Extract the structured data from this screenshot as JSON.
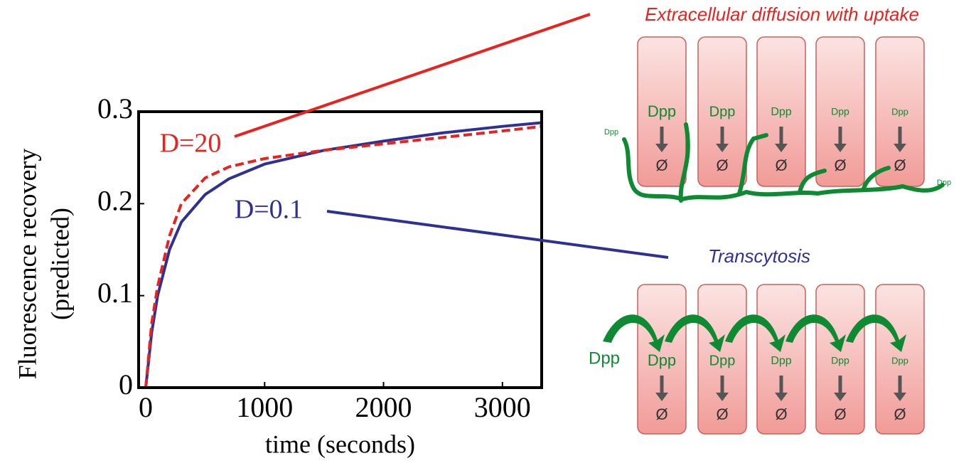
{
  "chart_data": {
    "type": "line",
    "xlabel": "time (seconds)",
    "ylabel": [
      "Fluorescence recovery",
      "(predicted)"
    ],
    "x": [
      0,
      50,
      100,
      200,
      300,
      500,
      700,
      1000,
      1500,
      2000,
      2500,
      3000,
      3330
    ],
    "series": [
      {
        "name": "D=20",
        "color": "#e8231f",
        "dash": true,
        "values": [
          0,
          0.07,
          0.11,
          0.165,
          0.2,
          0.228,
          0.24,
          0.249,
          0.258,
          0.265,
          0.272,
          0.279,
          0.284
        ]
      },
      {
        "name": "D=0.1",
        "color": "#2e3192",
        "dash": false,
        "values": [
          0,
          0.06,
          0.1,
          0.15,
          0.18,
          0.21,
          0.227,
          0.243,
          0.258,
          0.268,
          0.277,
          0.284,
          0.288
        ]
      }
    ],
    "xlim": [
      -60,
      3330
    ],
    "ylim": [
      0,
      0.3
    ],
    "xticks": [
      0,
      1000,
      2000,
      3000
    ],
    "yticks": [
      0,
      0.1,
      0.2,
      0.3
    ]
  },
  "diagrams": {
    "extracellular": {
      "label": "Extracellular diffusion with uptake",
      "cells": [
        "Dpp",
        "Dpp",
        "Dpp",
        "Dpp",
        "Dpp"
      ],
      "sink": "Ø",
      "extra": [
        "Dpp",
        "Dpp"
      ]
    },
    "transcytosis": {
      "label": "Transcytosis",
      "cells": [
        "Dpp",
        "Dpp",
        "Dpp",
        "Dpp",
        "Dpp"
      ],
      "sink": "Ø",
      "extra": [
        "Dpp"
      ]
    }
  }
}
